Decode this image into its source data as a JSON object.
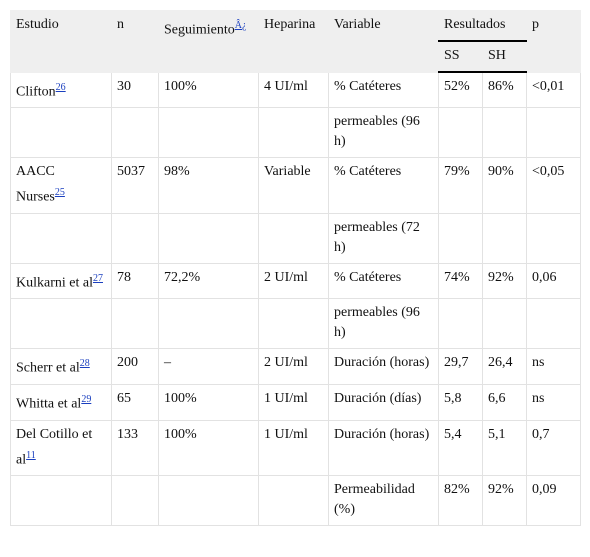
{
  "table": {
    "header": {
      "study": "Estudio",
      "n": "n",
      "followup": "Seguimiento",
      "followup_ref": "Â¿",
      "heparin": "Heparina",
      "variable": "Variable",
      "results": "Resultados",
      "ss": "SS",
      "sh": "SH",
      "p": "p"
    },
    "rows": [
      {
        "study": "Clifton",
        "ref": "26",
        "n": "30",
        "followup": "100%",
        "heparin": "4 UI/ml",
        "variable": "% Catéteres",
        "ss": "52%",
        "sh": "86%",
        "p": "<0,01"
      },
      {
        "variable": "permeables (96 h)"
      },
      {
        "study": "AACC Nurses",
        "ref": "25",
        "n": "5037",
        "followup": "98%",
        "heparin": "Variable",
        "variable": "% Catéteres",
        "ss": "79%",
        "sh": "90%",
        "p": "<0,05"
      },
      {
        "variable": "permeables (72 h)"
      },
      {
        "study": "Kulkarni et al",
        "ref": "27",
        "n": "78",
        "followup": "72,2%",
        "heparin": "2 UI/ml",
        "variable": "% Catéteres",
        "ss": "74%",
        "sh": "92%",
        "p": "0,06"
      },
      {
        "variable": "permeables (96 h)"
      },
      {
        "study": "Scherr et al",
        "ref": "28",
        "n": "200",
        "followup": "–",
        "heparin": "2 UI/ml",
        "variable": "Duración (horas)",
        "ss": "29,7",
        "sh": "26,4",
        "p": "ns"
      },
      {
        "study": "Whitta et al",
        "ref": "29",
        "n": "65",
        "followup": "100%",
        "heparin": "1 UI/ml",
        "variable": "Duración (días)",
        "ss": "5,8",
        "sh": "6,6",
        "p": "ns"
      },
      {
        "study": "Del Cotillo et al",
        "ref": "11",
        "n": "133",
        "followup": "100%",
        "heparin": "1 UI/ml",
        "variable": "Duración (horas)",
        "ss": "5,4",
        "sh": "5,1",
        "p": "0,7"
      },
      {
        "variable": "Permeabilidad (%)",
        "ss": "82%",
        "sh": "92%",
        "p": "0,09"
      }
    ]
  }
}
